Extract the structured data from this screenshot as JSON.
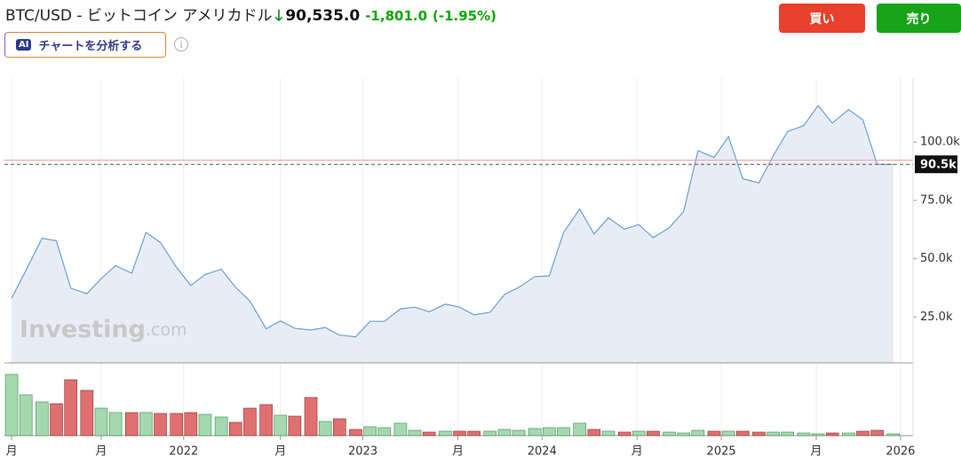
{
  "header": {
    "title": "BTC/USD - ビットコイン アメリカドル",
    "price": "90,535.0",
    "change": "-1,801.0",
    "change_pct": "(-1.95%)"
  },
  "buttons": {
    "buy": "買い",
    "sell": "売り"
  },
  "ai_button": {
    "badge": "AI",
    "label": "チャートを分析する"
  },
  "watermark": {
    "brand": "Investing",
    "suffix": ".com"
  },
  "chart_data": [
    {
      "type": "area",
      "color": "#6a9fd4",
      "fill": "#e8edf5",
      "grid": true,
      "x": [
        2021.04,
        2021.12,
        2021.21,
        2021.29,
        2021.37,
        2021.46,
        2021.54,
        2021.62,
        2021.71,
        2021.79,
        2021.87,
        2021.96,
        2022.04,
        2022.12,
        2022.21,
        2022.29,
        2022.37,
        2022.46,
        2022.54,
        2022.62,
        2022.71,
        2022.79,
        2022.87,
        2022.96,
        2023.04,
        2023.12,
        2023.21,
        2023.29,
        2023.37,
        2023.46,
        2023.54,
        2023.62,
        2023.71,
        2023.79,
        2023.87,
        2023.96,
        2024.04,
        2024.12,
        2024.21,
        2024.29,
        2024.37,
        2024.46,
        2024.54,
        2024.62,
        2024.71,
        2024.79,
        2024.87,
        2024.96,
        2025.04,
        2025.12,
        2025.21,
        2025.29,
        2025.37,
        2025.46,
        2025.54,
        2025.62,
        2025.71,
        2025.79,
        2025.87,
        2025.96
      ],
      "values": [
        33,
        45,
        58.8,
        57.7,
        37.3,
        35,
        41.5,
        47,
        43.8,
        61.3,
        57,
        46.3,
        38.5,
        43.2,
        45.5,
        37.7,
        31.8,
        19.9,
        23.3,
        20.1,
        19.4,
        20.5,
        17.2,
        16.5,
        23.1,
        23.1,
        28.5,
        29.2,
        27.2,
        30.5,
        29.2,
        25.9,
        27,
        34.6,
        37.7,
        42.3,
        42.6,
        61.2,
        71.3,
        60.6,
        67.5,
        62.7,
        64.6,
        59,
        63.3,
        70.2,
        96.4,
        93.4,
        102.4,
        84.3,
        82.5,
        94.2,
        104.6,
        107.1,
        115.7,
        108.2,
        114,
        109.6,
        90.5,
        90.5
      ],
      "xlim": [
        2021.0,
        2026.07
      ],
      "xticks": [
        {
          "value": 2021.04,
          "label": "月"
        },
        {
          "value": 2021.54,
          "label": "月"
        },
        2022,
        {
          "value": 2022.54,
          "label": "月"
        },
        2023,
        {
          "value": 2023.53,
          "label": "月"
        },
        2024,
        {
          "value": 2024.53,
          "label": "月"
        },
        2025,
        {
          "value": 2025.53,
          "label": "月"
        },
        2026
      ],
      "ylim": [
        5.3,
        127.5
      ],
      "yticks": [
        {
          "value": 25,
          "label": "25.0k"
        },
        {
          "value": 50,
          "label": "50.0k"
        },
        {
          "value": 75,
          "label": "75.0k"
        },
        {
          "value": 100,
          "label": "100.0k"
        }
      ],
      "reference_line": 92.3,
      "reference_color": "#f2a0a0",
      "last_price": {
        "value": 90.5,
        "label": "90.5k"
      }
    },
    {
      "type": "bar",
      "up_color": "#a6d8b0",
      "down_color": "#e07070",
      "values": [
        69,
        46,
        38,
        36,
        63,
        51,
        31,
        26,
        26,
        26,
        25,
        25,
        26,
        24,
        21,
        15,
        31,
        35,
        23,
        22,
        43,
        16,
        19,
        7,
        10,
        9,
        14,
        6,
        4,
        5,
        5,
        5,
        5,
        7,
        6,
        8,
        9,
        9,
        14,
        7,
        5,
        4,
        5,
        5,
        4,
        3,
        6,
        5,
        5,
        5,
        4,
        4,
        4,
        3,
        2,
        3,
        3,
        5,
        6,
        2
      ],
      "ylim": [
        0,
        76
      ]
    }
  ]
}
